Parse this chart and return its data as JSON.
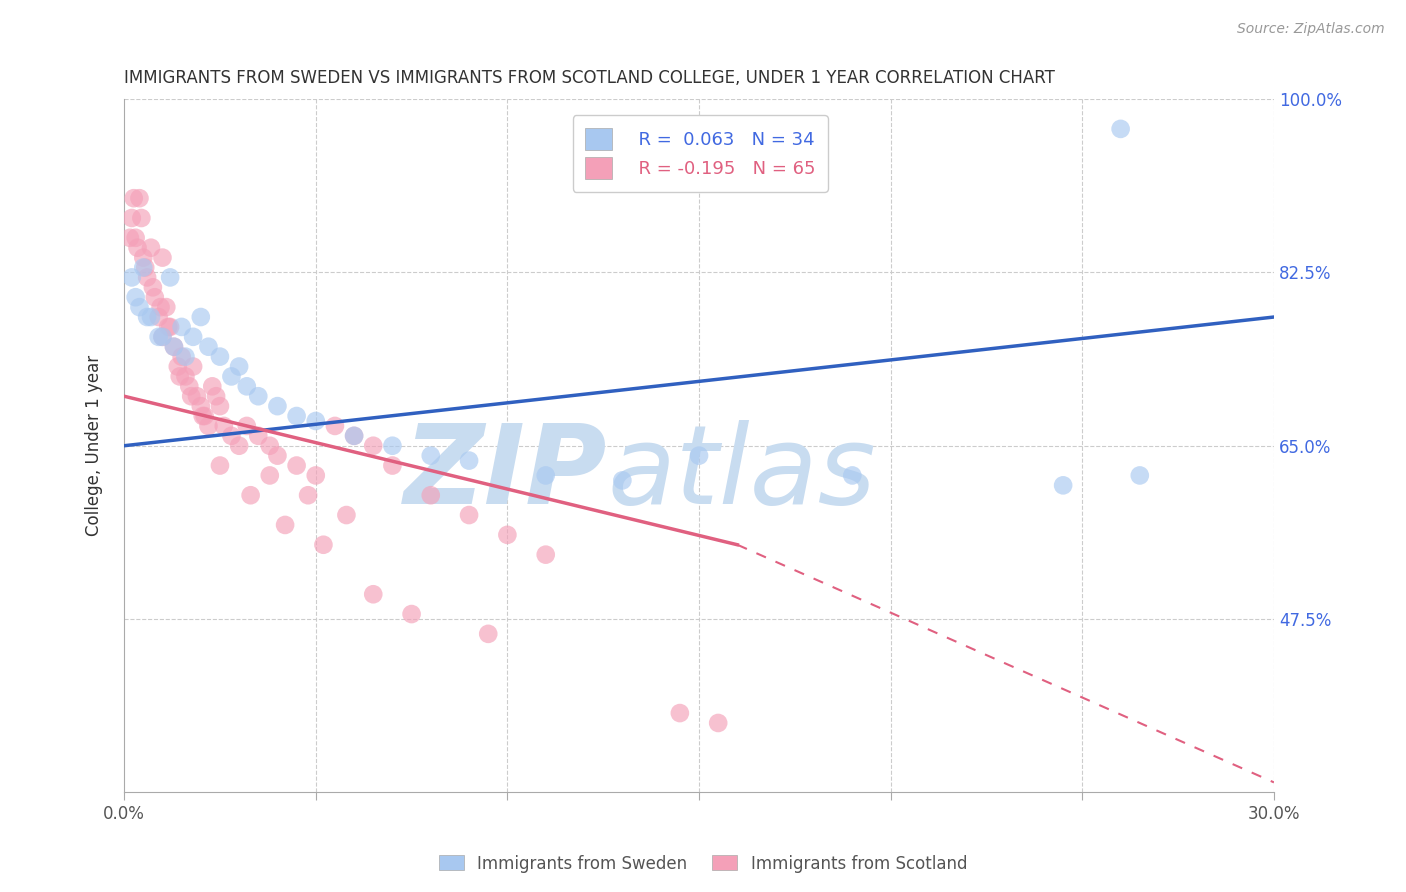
{
  "title": "IMMIGRANTS FROM SWEDEN VS IMMIGRANTS FROM SCOTLAND COLLEGE, UNDER 1 YEAR CORRELATION CHART",
  "source": "Source: ZipAtlas.com",
  "xlabel_sweden": "Immigrants from Sweden",
  "xlabel_scotland": "Immigrants from Scotland",
  "ylabel": "College, Under 1 year",
  "xlim": [
    0.0,
    30.0
  ],
  "ylim": [
    30.0,
    100.0
  ],
  "yticks": [
    47.5,
    65.0,
    82.5,
    100.0
  ],
  "xticks_show": [
    0.0,
    30.0
  ],
  "legend_sweden_R": 0.063,
  "legend_sweden_N": 34,
  "legend_scotland_R": -0.195,
  "legend_scotland_N": 65,
  "color_sweden": "#A8C8F0",
  "color_scotland": "#F4A0B8",
  "trend_sweden_color": "#3060C0",
  "trend_scotland_color": "#E06080",
  "watermark_zip": "ZIP",
  "watermark_atlas": "atlas",
  "watermark_color": "#C8DCF0",
  "sweden_trend_x0": 0.0,
  "sweden_trend_y0": 65.0,
  "sweden_trend_x1": 30.0,
  "sweden_trend_y1": 78.0,
  "scotland_trend_x0": 0.0,
  "scotland_trend_y0": 70.0,
  "scotland_solid_x1": 16.0,
  "scotland_solid_y1": 55.0,
  "scotland_dash_x1": 30.0,
  "scotland_dash_y1": 31.0,
  "sweden_x": [
    0.3,
    0.5,
    0.7,
    1.0,
    1.2,
    1.5,
    1.8,
    2.0,
    2.2,
    2.5,
    2.8,
    3.0,
    3.2,
    3.5,
    4.0,
    4.5,
    5.0,
    6.0,
    7.0,
    8.0,
    9.0,
    11.0,
    13.0,
    15.0,
    19.0,
    24.5,
    26.5,
    0.2,
    0.4,
    0.6,
    0.9,
    1.3,
    1.6,
    26.0
  ],
  "sweden_y": [
    80.0,
    83.0,
    78.0,
    76.0,
    82.0,
    77.0,
    76.0,
    78.0,
    75.0,
    74.0,
    72.0,
    73.0,
    71.0,
    70.0,
    69.0,
    68.0,
    67.5,
    66.0,
    65.0,
    64.0,
    63.5,
    62.0,
    61.5,
    64.0,
    62.0,
    61.0,
    62.0,
    82.0,
    79.0,
    78.0,
    76.0,
    75.0,
    74.0,
    97.0
  ],
  "scotland_x": [
    0.2,
    0.3,
    0.4,
    0.5,
    0.6,
    0.7,
    0.8,
    0.9,
    1.0,
    1.0,
    1.1,
    1.2,
    1.3,
    1.4,
    1.5,
    1.6,
    1.7,
    1.8,
    1.9,
    2.0,
    2.1,
    2.2,
    2.3,
    2.4,
    2.5,
    2.6,
    2.8,
    3.0,
    3.2,
    3.5,
    3.8,
    4.0,
    4.5,
    5.0,
    5.5,
    6.0,
    6.5,
    7.0,
    8.0,
    9.0,
    10.0,
    11.0,
    0.15,
    0.35,
    0.55,
    0.75,
    0.95,
    1.15,
    1.45,
    1.75,
    2.05,
    2.5,
    3.3,
    4.2,
    5.2,
    6.5,
    7.5,
    9.5,
    0.25,
    0.45,
    14.5,
    15.5,
    3.8,
    4.8,
    5.8
  ],
  "scotland_y": [
    88.0,
    86.0,
    90.0,
    84.0,
    82.0,
    85.0,
    80.0,
    78.0,
    84.0,
    76.0,
    79.0,
    77.0,
    75.0,
    73.0,
    74.0,
    72.0,
    71.0,
    73.0,
    70.0,
    69.0,
    68.0,
    67.0,
    71.0,
    70.0,
    69.0,
    67.0,
    66.0,
    65.0,
    67.0,
    66.0,
    65.0,
    64.0,
    63.0,
    62.0,
    67.0,
    66.0,
    65.0,
    63.0,
    60.0,
    58.0,
    56.0,
    54.0,
    86.0,
    85.0,
    83.0,
    81.0,
    79.0,
    77.0,
    72.0,
    70.0,
    68.0,
    63.0,
    60.0,
    57.0,
    55.0,
    50.0,
    48.0,
    46.0,
    90.0,
    88.0,
    38.0,
    37.0,
    62.0,
    60.0,
    58.0
  ]
}
